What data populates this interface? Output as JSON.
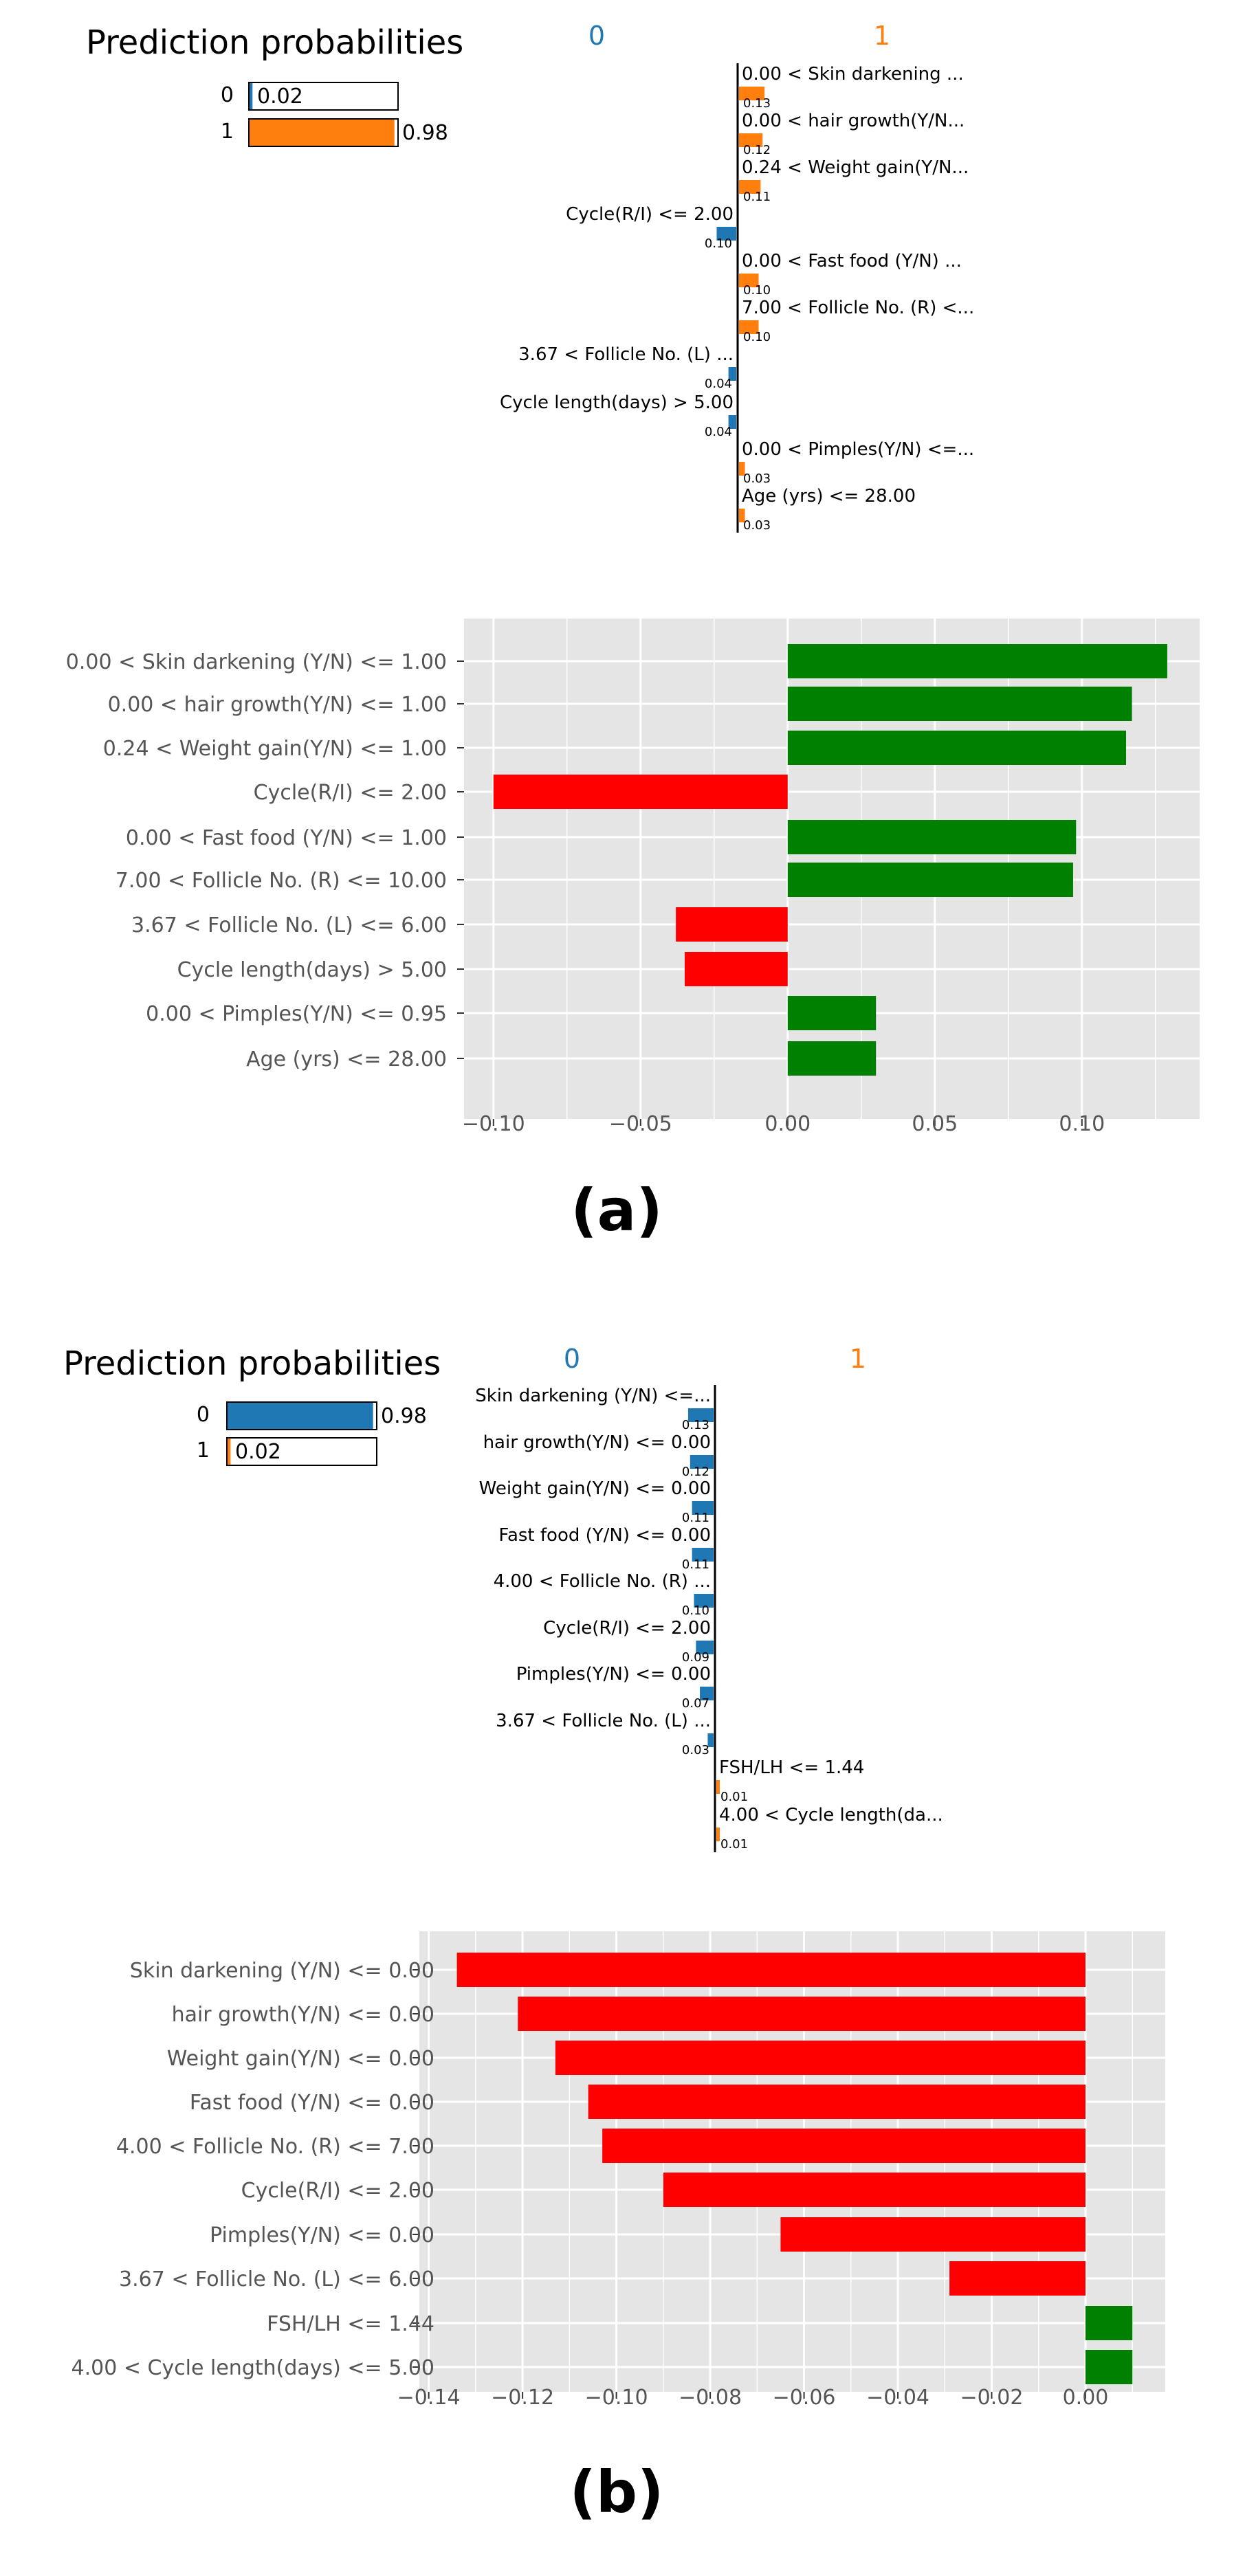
{
  "colors": {
    "class0": "#1f77b4",
    "class1": "#ff7f0e",
    "positive": "#008000",
    "negative": "#ff0000",
    "plot_bg": "#e5e5e5",
    "grid": "#ffffff",
    "tick_text": "#555555"
  },
  "panels": [
    {
      "caption": "(a)",
      "prediction": {
        "title": "Prediction probabilities",
        "rows": [
          {
            "label": "0",
            "value": 0.02,
            "text": "0.02"
          },
          {
            "label": "1",
            "value": 0.98,
            "text": "0.98"
          }
        ]
      },
      "contributions": {
        "class_left": "0",
        "class_right": "1",
        "items": [
          {
            "label": "0.00 < Skin darkening ...",
            "value": 0.13,
            "text": "0.13",
            "side": "right"
          },
          {
            "label": "0.00 < hair growth(Y/N...",
            "value": 0.12,
            "text": "0.12",
            "side": "right"
          },
          {
            "label": "0.24 < Weight gain(Y/N...",
            "value": 0.11,
            "text": "0.11",
            "side": "right"
          },
          {
            "label": "Cycle(R/I) <= 2.00",
            "value": 0.1,
            "text": "0.10",
            "side": "left"
          },
          {
            "label": "0.00 < Fast food (Y/N) ...",
            "value": 0.1,
            "text": "0.10",
            "side": "right"
          },
          {
            "label": "7.00 < Follicle No. (R) <...",
            "value": 0.1,
            "text": "0.10",
            "side": "right"
          },
          {
            "label": "3.67 < Follicle No. (L) ...",
            "value": 0.04,
            "text": "0.04",
            "side": "left"
          },
          {
            "label": "Cycle length(days) > 5.00",
            "value": 0.04,
            "text": "0.04",
            "side": "left"
          },
          {
            "label": "0.00 < Pimples(Y/N) <=...",
            "value": 0.03,
            "text": "0.03",
            "side": "right"
          },
          {
            "label": "Age (yrs) <= 28.00",
            "value": 0.03,
            "text": "0.03",
            "side": "right"
          }
        ]
      }
    },
    {
      "caption": "(b)",
      "prediction": {
        "title": "Prediction probabilities",
        "rows": [
          {
            "label": "0",
            "value": 0.98,
            "text": "0.98"
          },
          {
            "label": "1",
            "value": 0.02,
            "text": "0.02"
          }
        ]
      },
      "contributions": {
        "class_left": "0",
        "class_right": "1",
        "items": [
          {
            "label": "Skin darkening (Y/N) <=...",
            "value": 0.13,
            "text": "0.13",
            "side": "left"
          },
          {
            "label": "hair growth(Y/N) <= 0.00",
            "value": 0.12,
            "text": "0.12",
            "side": "left"
          },
          {
            "label": "Weight gain(Y/N) <= 0.00",
            "value": 0.11,
            "text": "0.11",
            "side": "left"
          },
          {
            "label": "Fast food (Y/N) <= 0.00",
            "value": 0.11,
            "text": "0.11",
            "side": "left"
          },
          {
            "label": "4.00 < Follicle No. (R) ...",
            "value": 0.1,
            "text": "0.10",
            "side": "left"
          },
          {
            "label": "Cycle(R/I) <= 2.00",
            "value": 0.09,
            "text": "0.09",
            "side": "left"
          },
          {
            "label": "Pimples(Y/N) <= 0.00",
            "value": 0.07,
            "text": "0.07",
            "side": "left"
          },
          {
            "label": "3.67 < Follicle No. (L) ...",
            "value": 0.03,
            "text": "0.03",
            "side": "left"
          },
          {
            "label": "FSH/LH <= 1.44",
            "value": 0.01,
            "text": "0.01",
            "side": "right"
          },
          {
            "label": "4.00 < Cycle length(da...",
            "value": 0.01,
            "text": "0.01",
            "side": "right"
          }
        ]
      }
    }
  ],
  "chart_data": [
    {
      "type": "bar",
      "orientation": "horizontal",
      "categories": [
        "0.00 < Skin darkening (Y/N) <= 1.00",
        "0.00 < hair growth(Y/N) <= 1.00",
        "0.24 < Weight gain(Y/N) <= 1.00",
        "Cycle(R/I) <= 2.00",
        "0.00 < Fast food (Y/N) <= 1.00",
        "7.00 < Follicle No. (R) <= 10.00",
        "3.67 < Follicle No. (L) <= 6.00",
        "Cycle length(days) > 5.00",
        "0.00 < Pimples(Y/N) <= 0.95",
        "Age (yrs) <= 28.00"
      ],
      "values": [
        0.129,
        0.117,
        0.115,
        -0.1,
        0.098,
        0.097,
        -0.038,
        -0.035,
        0.03,
        0.03
      ],
      "xlim": [
        -0.11,
        0.14
      ],
      "xticks": [
        -0.1,
        -0.05,
        0.0,
        0.05,
        0.1
      ],
      "xtick_labels": [
        "−0.10",
        "−0.05",
        "0.00",
        "0.05",
        "0.10"
      ],
      "grid": true,
      "title": "",
      "xlabel": "",
      "ylabel": ""
    },
    {
      "type": "bar",
      "orientation": "horizontal",
      "categories": [
        "Skin darkening (Y/N) <= 0.00",
        "hair growth(Y/N) <= 0.00",
        "Weight gain(Y/N) <= 0.00",
        "Fast food (Y/N) <= 0.00",
        "4.00 < Follicle No. (R) <= 7.00",
        "Cycle(R/I) <= 2.00",
        "Pimples(Y/N) <= 0.00",
        "3.67 < Follicle No. (L) <= 6.00",
        "FSH/LH <= 1.44",
        "4.00 < Cycle length(days) <= 5.00"
      ],
      "values": [
        -0.134,
        -0.121,
        -0.113,
        -0.106,
        -0.103,
        -0.09,
        -0.065,
        -0.029,
        0.01,
        0.01
      ],
      "xlim": [
        -0.142,
        0.017
      ],
      "xticks": [
        -0.14,
        -0.12,
        -0.1,
        -0.08,
        -0.06,
        -0.04,
        -0.02,
        0.0
      ],
      "xtick_labels": [
        "−0.14",
        "−0.12",
        "−0.10",
        "−0.08",
        "−0.06",
        "−0.04",
        "−0.02",
        "0.00"
      ],
      "grid": true,
      "title": "",
      "xlabel": "",
      "ylabel": ""
    }
  ]
}
